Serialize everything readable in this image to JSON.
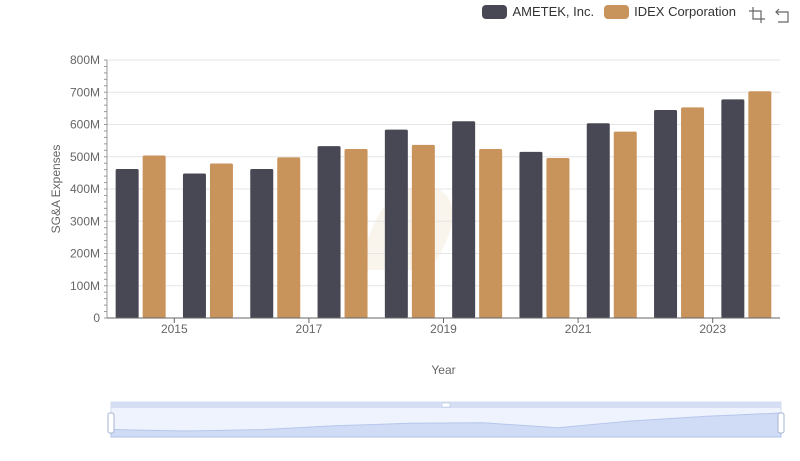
{
  "legend": {
    "items": [
      {
        "label": "AMETEK, Inc.",
        "color": "#484855"
      },
      {
        "label": "IDEX Corporation",
        "color": "#c9935c"
      }
    ]
  },
  "toolbox": {
    "icons": [
      "zoom-icon",
      "restore-icon"
    ]
  },
  "chart_data": {
    "type": "bar",
    "x": [
      2014,
      2015,
      2016,
      2017,
      2018,
      2019,
      2020,
      2021,
      2022,
      2023
    ],
    "x_tick_labels": [
      "2015",
      "2017",
      "2019",
      "2021",
      "2023"
    ],
    "xlabel": "Year",
    "ylabel": "SG&A Expenses",
    "ylim": [
      0,
      800000000
    ],
    "y_tick_labels": [
      "0",
      "100M",
      "200M",
      "300M",
      "400M",
      "500M",
      "600M",
      "700M",
      "800M"
    ],
    "grid": true,
    "legend_position": "top-right",
    "has_zoom_slider": true,
    "series": [
      {
        "name": "AMETEK, Inc.",
        "color": "#484855",
        "values": [
          462000000,
          448000000,
          462000000,
          533000000,
          584000000,
          610000000,
          515000000,
          604000000,
          645000000,
          678000000
        ]
      },
      {
        "name": "IDEX Corporation",
        "color": "#c9935c",
        "values": [
          504000000,
          479000000,
          498000000,
          524000000,
          537000000,
          524000000,
          496000000,
          578000000,
          653000000,
          703000000
        ]
      }
    ]
  }
}
